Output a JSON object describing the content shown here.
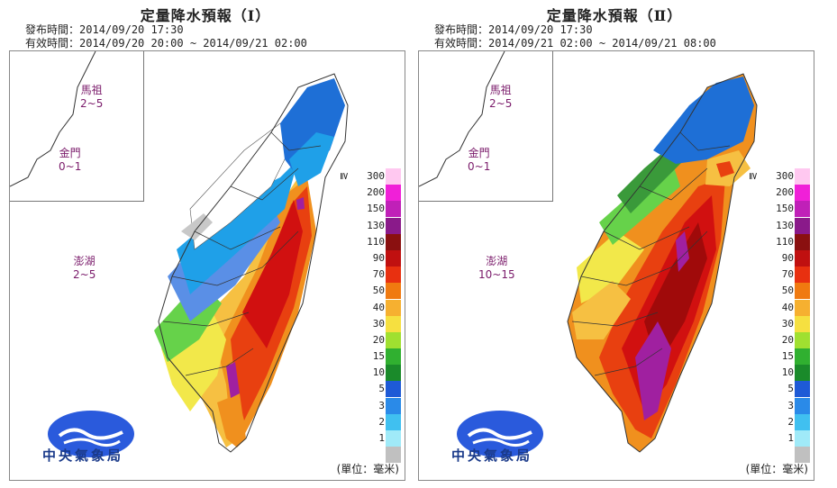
{
  "panels": [
    {
      "title": "定量降水預報（Ⅰ）",
      "issue_label": "發布時間：",
      "issue_time": "2014/09/20 17:30",
      "valid_label": "有效時間：",
      "valid_time": "2014/09/20 20:00 ~ 2014/09/21 02:00",
      "islands": {
        "matsu": {
          "name": "馬祖",
          "range": "2~5"
        },
        "kinmen": {
          "name": "金門",
          "range": "0~1"
        },
        "penghu": {
          "name": "澎湖",
          "range": "2~5"
        }
      },
      "zone_colors": [
        "#ffffff",
        "#c8c8c8",
        "#5a8fe6",
        "#1e6fd6",
        "#1fa0e8",
        "#3a9a3a",
        "#66d24a",
        "#f2e84a",
        "#f6c042",
        "#f0901e",
        "#e84010",
        "#d11010",
        "#a00a0a",
        "#a020a0"
      ]
    },
    {
      "title": "定量降水預報（Ⅱ）",
      "issue_label": "發布時間：",
      "issue_time": "2014/09/20 17:30",
      "valid_label": "有效時間：",
      "valid_time": "2014/09/21 02:00 ~ 2014/09/21 08:00",
      "islands": {
        "matsu": {
          "name": "馬祖",
          "range": "2~5"
        },
        "kinmen": {
          "name": "金門",
          "range": "0~1"
        },
        "penghu": {
          "name": "澎湖",
          "range": "10~15"
        }
      },
      "zone_colors": [
        "#1e6fd6",
        "#1e6fd6",
        "#3a9a3a",
        "#66d24a",
        "#f2e84a",
        "#f6c042",
        "#f0901e",
        "#e84010",
        "#d11010",
        "#c01010",
        "#a00a0a",
        "#a020a0",
        "#8a1a8a",
        "#a020a0"
      ]
    }
  ],
  "legend": {
    "ge_symbol": "≧",
    "items": [
      {
        "label": "300",
        "color": "#ffc8f0"
      },
      {
        "label": "200",
        "color": "#f020d8"
      },
      {
        "label": "150",
        "color": "#c020b8"
      },
      {
        "label": "130",
        "color": "#8a1a8a"
      },
      {
        "label": "110",
        "color": "#8a1010"
      },
      {
        "label": "90",
        "color": "#c01010"
      },
      {
        "label": "70",
        "color": "#e83010"
      },
      {
        "label": "50",
        "color": "#f07a10"
      },
      {
        "label": "40",
        "color": "#f6b030"
      },
      {
        "label": "30",
        "color": "#f6e040"
      },
      {
        "label": "20",
        "color": "#a0e030"
      },
      {
        "label": "15",
        "color": "#30b030"
      },
      {
        "label": "10",
        "color": "#1a8a2a"
      },
      {
        "label": "5",
        "color": "#1e5ad6"
      },
      {
        "label": "3",
        "color": "#2a8ae8"
      },
      {
        "label": "2",
        "color": "#40c0f0"
      },
      {
        "label": "1",
        "color": "#a0eaf8"
      },
      {
        "label": "",
        "color": "#c0c0c0"
      }
    ],
    "unit": "(單位：毫米)"
  },
  "logo_text": "中央氣象局"
}
